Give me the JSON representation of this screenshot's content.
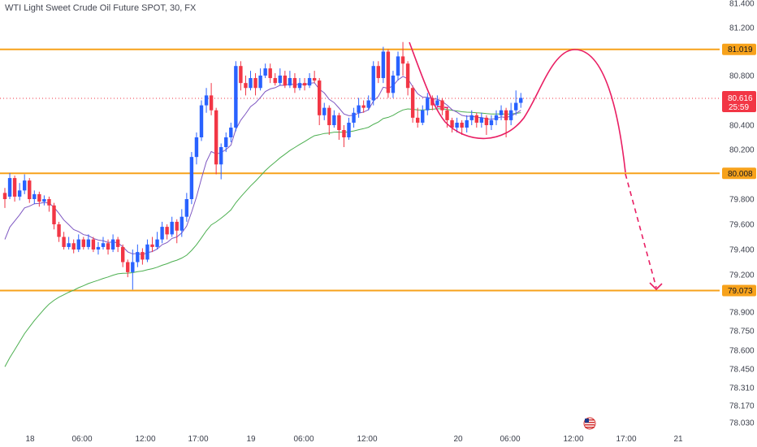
{
  "chart_data": {
    "type": "candlestick",
    "title": "WTI Light Sweet Crude Oil Future SPOT, 30, FX",
    "ylim": [
      78.03,
      81.4
    ],
    "y_ticks": [
      "81.400",
      "81.200",
      "80.800",
      "80.400",
      "80.200",
      "79.800",
      "79.600",
      "79.400",
      "79.200",
      "78.900",
      "78.750",
      "78.600",
      "78.450",
      "78.310",
      "78.170",
      "78.030"
    ],
    "y_tick_values": [
      81.4,
      81.2,
      80.8,
      80.4,
      80.2,
      79.8,
      79.6,
      79.4,
      79.2,
      78.9,
      78.75,
      78.6,
      78.45,
      78.31,
      78.17,
      78.03
    ],
    "x_ticks": [
      "18",
      "06:00",
      "12:00",
      "17:00",
      "19",
      "06:00",
      "12:00",
      "20",
      "06:00",
      "12:00",
      "17:00",
      "21"
    ],
    "horizontal_levels": [
      {
        "value": 81.019,
        "label": "81.019"
      },
      {
        "value": 80.008,
        "label": "80.008"
      },
      {
        "value": 79.073,
        "label": "79.073"
      }
    ],
    "current_price": {
      "value": 80.616,
      "label": "80.616",
      "countdown": "25:59"
    },
    "candles": [
      [
        79.85,
        79.8,
        79.89,
        79.73
      ],
      [
        79.82,
        79.97,
        80.01,
        79.8
      ],
      [
        79.97,
        79.82,
        79.99,
        79.78
      ],
      [
        79.82,
        79.87,
        79.93,
        79.79
      ],
      [
        79.87,
        79.95,
        80.0,
        79.84
      ],
      [
        79.95,
        79.8,
        79.97,
        79.77
      ],
      [
        79.8,
        79.84,
        79.87,
        79.76
      ],
      [
        79.84,
        79.78,
        79.86,
        79.74
      ],
      [
        79.78,
        79.8,
        79.83,
        79.75
      ],
      [
        79.8,
        79.75,
        79.82,
        79.7
      ],
      [
        79.75,
        79.6,
        79.77,
        79.56
      ],
      [
        79.6,
        79.5,
        79.62,
        79.46
      ],
      [
        79.5,
        79.42,
        79.54,
        79.4
      ],
      [
        79.42,
        79.45,
        79.5,
        79.4
      ],
      [
        79.45,
        79.4,
        79.48,
        79.37
      ],
      [
        79.4,
        79.48,
        79.52,
        79.38
      ],
      [
        79.48,
        79.42,
        79.5,
        79.4
      ],
      [
        79.42,
        79.48,
        79.52,
        79.4
      ],
      [
        79.48,
        79.4,
        79.5,
        79.38
      ],
      [
        79.4,
        79.42,
        79.46,
        79.36
      ],
      [
        79.42,
        79.45,
        79.5,
        79.4
      ],
      [
        79.45,
        79.4,
        79.48,
        79.36
      ],
      [
        79.4,
        79.48,
        79.52,
        79.38
      ],
      [
        79.48,
        79.42,
        79.5,
        79.38
      ],
      [
        79.42,
        79.3,
        79.44,
        79.26
      ],
      [
        79.3,
        79.22,
        79.32,
        79.18
      ],
      [
        79.22,
        79.3,
        79.4,
        79.08
      ],
      [
        79.3,
        79.38,
        79.44,
        79.26
      ],
      [
        79.38,
        79.32,
        79.41,
        79.28
      ],
      [
        79.32,
        79.44,
        79.48,
        79.3
      ],
      [
        79.44,
        79.42,
        79.5,
        79.38
      ],
      [
        79.42,
        79.48,
        79.54,
        79.4
      ],
      [
        79.48,
        79.58,
        79.62,
        79.45
      ],
      [
        79.58,
        79.52,
        79.6,
        79.48
      ],
      [
        79.52,
        79.62,
        79.66,
        79.5
      ],
      [
        79.62,
        79.55,
        79.64,
        79.45
      ],
      [
        79.55,
        79.66,
        79.72,
        79.5
      ],
      [
        79.66,
        79.8,
        79.85,
        79.62
      ],
      [
        79.8,
        80.14,
        80.18,
        79.76
      ],
      [
        80.14,
        80.3,
        80.34,
        80.08
      ],
      [
        80.3,
        80.56,
        80.6,
        80.27
      ],
      [
        80.56,
        80.64,
        80.7,
        80.5
      ],
      [
        80.64,
        80.52,
        80.74,
        80.48
      ],
      [
        80.52,
        80.08,
        80.54,
        80.0
      ],
      [
        80.08,
        80.22,
        80.25,
        79.96
      ],
      [
        80.22,
        80.3,
        80.34,
        80.18
      ],
      [
        80.3,
        80.38,
        80.42,
        80.26
      ],
      [
        80.38,
        80.88,
        80.92,
        80.35
      ],
      [
        80.88,
        80.74,
        80.92,
        80.68
      ],
      [
        80.74,
        80.7,
        80.8,
        80.64
      ],
      [
        80.7,
        80.78,
        80.84,
        80.68
      ],
      [
        80.78,
        80.7,
        80.82,
        80.64
      ],
      [
        80.7,
        80.8,
        80.86,
        80.68
      ],
      [
        80.8,
        80.86,
        80.9,
        80.78
      ],
      [
        80.86,
        80.78,
        80.9,
        80.74
      ],
      [
        80.78,
        80.74,
        80.82,
        80.72
      ],
      [
        80.74,
        80.8,
        80.86,
        80.72
      ],
      [
        80.8,
        80.72,
        80.84,
        80.7
      ],
      [
        80.72,
        80.78,
        80.84,
        80.7
      ],
      [
        80.78,
        80.7,
        80.82,
        80.66
      ],
      [
        80.7,
        80.74,
        80.78,
        80.68
      ],
      [
        80.74,
        80.72,
        80.78,
        80.68
      ],
      [
        80.72,
        80.78,
        80.82,
        80.7
      ],
      [
        80.78,
        80.76,
        80.84,
        80.74
      ],
      [
        80.76,
        80.48,
        80.78,
        80.4
      ],
      [
        80.48,
        80.54,
        80.58,
        80.44
      ],
      [
        80.54,
        80.4,
        80.56,
        80.32
      ],
      [
        80.4,
        80.48,
        80.52,
        80.38
      ],
      [
        80.48,
        80.36,
        80.5,
        80.28
      ],
      [
        80.36,
        80.3,
        80.4,
        80.22
      ],
      [
        80.3,
        80.42,
        80.46,
        80.28
      ],
      [
        80.42,
        80.5,
        80.54,
        80.38
      ],
      [
        80.5,
        80.56,
        80.62,
        80.46
      ],
      [
        80.56,
        80.54,
        80.6,
        80.5
      ],
      [
        80.54,
        80.6,
        80.64,
        80.52
      ],
      [
        80.6,
        80.88,
        80.92,
        80.56
      ],
      [
        80.88,
        80.78,
        80.92,
        80.74
      ],
      [
        80.78,
        81.0,
        81.04,
        80.74
      ],
      [
        81.0,
        80.66,
        81.02,
        80.62
      ],
      [
        80.66,
        80.8,
        80.84,
        80.62
      ],
      [
        80.8,
        80.96,
        81.0,
        80.76
      ],
      [
        80.96,
        80.9,
        81.08,
        80.8
      ],
      [
        80.9,
        80.7,
        80.92,
        80.64
      ],
      [
        80.7,
        80.46,
        80.72,
        80.42
      ],
      [
        80.46,
        80.42,
        80.54,
        80.38
      ],
      [
        80.42,
        80.52,
        80.56,
        80.4
      ],
      [
        80.52,
        80.62,
        80.66,
        80.48
      ],
      [
        80.62,
        80.56,
        80.64,
        80.52
      ],
      [
        80.56,
        80.6,
        80.64,
        80.54
      ],
      [
        80.6,
        80.52,
        80.62,
        80.48
      ],
      [
        80.52,
        80.44,
        80.54,
        80.38
      ],
      [
        80.44,
        80.38,
        80.46,
        80.34
      ],
      [
        80.38,
        80.42,
        80.46,
        80.34
      ],
      [
        80.42,
        80.38,
        80.44,
        80.32
      ],
      [
        80.38,
        80.44,
        80.48,
        80.34
      ],
      [
        80.44,
        80.48,
        80.52,
        80.4
      ],
      [
        80.48,
        80.42,
        80.5,
        80.38
      ],
      [
        80.42,
        80.46,
        80.5,
        80.38
      ],
      [
        80.46,
        80.4,
        80.48,
        80.32
      ],
      [
        80.4,
        80.44,
        80.48,
        80.36
      ],
      [
        80.44,
        80.48,
        80.52,
        80.4
      ],
      [
        80.48,
        80.52,
        80.56,
        80.44
      ],
      [
        80.52,
        80.44,
        80.54,
        80.3
      ],
      [
        80.44,
        80.52,
        80.58,
        80.4
      ],
      [
        80.52,
        80.58,
        80.68,
        80.48
      ],
      [
        80.58,
        80.62,
        80.66,
        80.54
      ]
    ],
    "colors": {
      "up": "#2962ff",
      "down": "#f23645",
      "level": "#f7a21b",
      "ma_fast": "#7e57c2",
      "ma_slow": "#4caf50",
      "projection": "#e91e63"
    }
  },
  "ui": {
    "flag_icon": "us-flag-icon"
  }
}
